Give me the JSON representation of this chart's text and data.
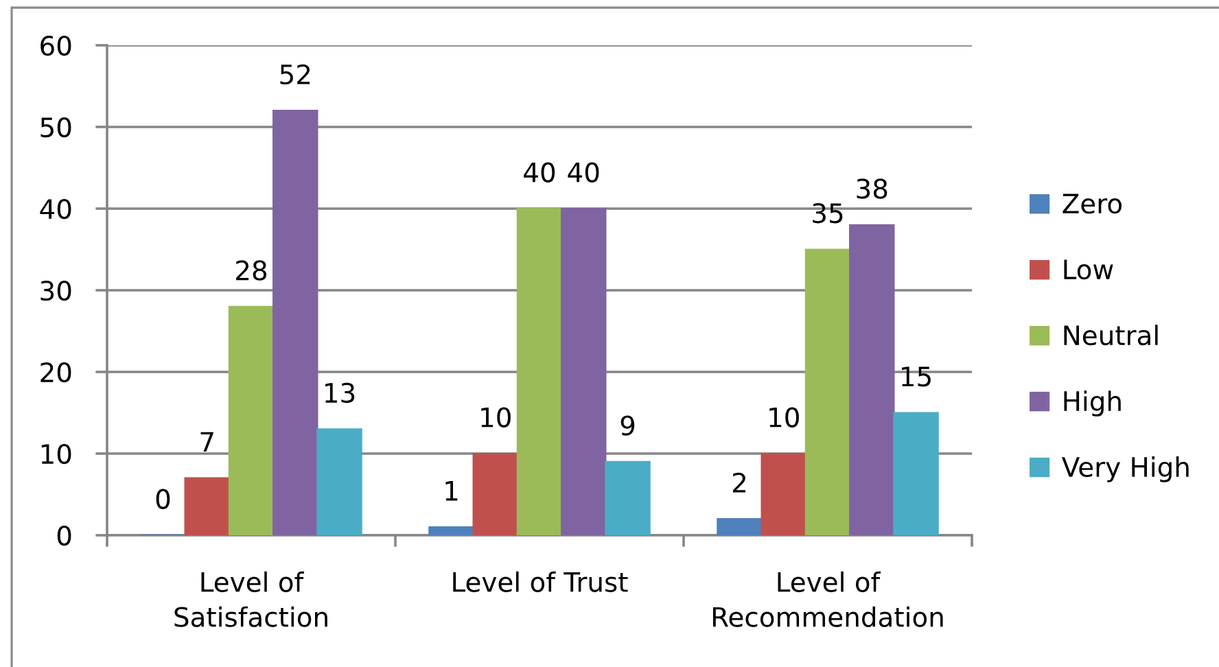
{
  "chart_data": {
    "type": "bar",
    "categories": [
      "Level of\nSatisfaction",
      "Level of Trust",
      "Level of\nRecommendation"
    ],
    "series": [
      {
        "name": "Zero",
        "color": "#4f81bd",
        "values": [
          0,
          1,
          2
        ]
      },
      {
        "name": "Low",
        "color": "#c0504d",
        "values": [
          7,
          10,
          10
        ]
      },
      {
        "name": "Neutral",
        "color": "#9bbb59",
        "values": [
          28,
          40,
          35
        ]
      },
      {
        "name": "High",
        "color": "#8064a2",
        "values": [
          52,
          40,
          38
        ]
      },
      {
        "name": "Very High",
        "color": "#4bacc6",
        "values": [
          13,
          9,
          15
        ]
      }
    ],
    "ylim": [
      0,
      60
    ],
    "yticks": [
      0,
      10,
      20,
      30,
      40,
      50,
      60
    ],
    "grid": "y",
    "legend": "right",
    "data_labels": true
  }
}
